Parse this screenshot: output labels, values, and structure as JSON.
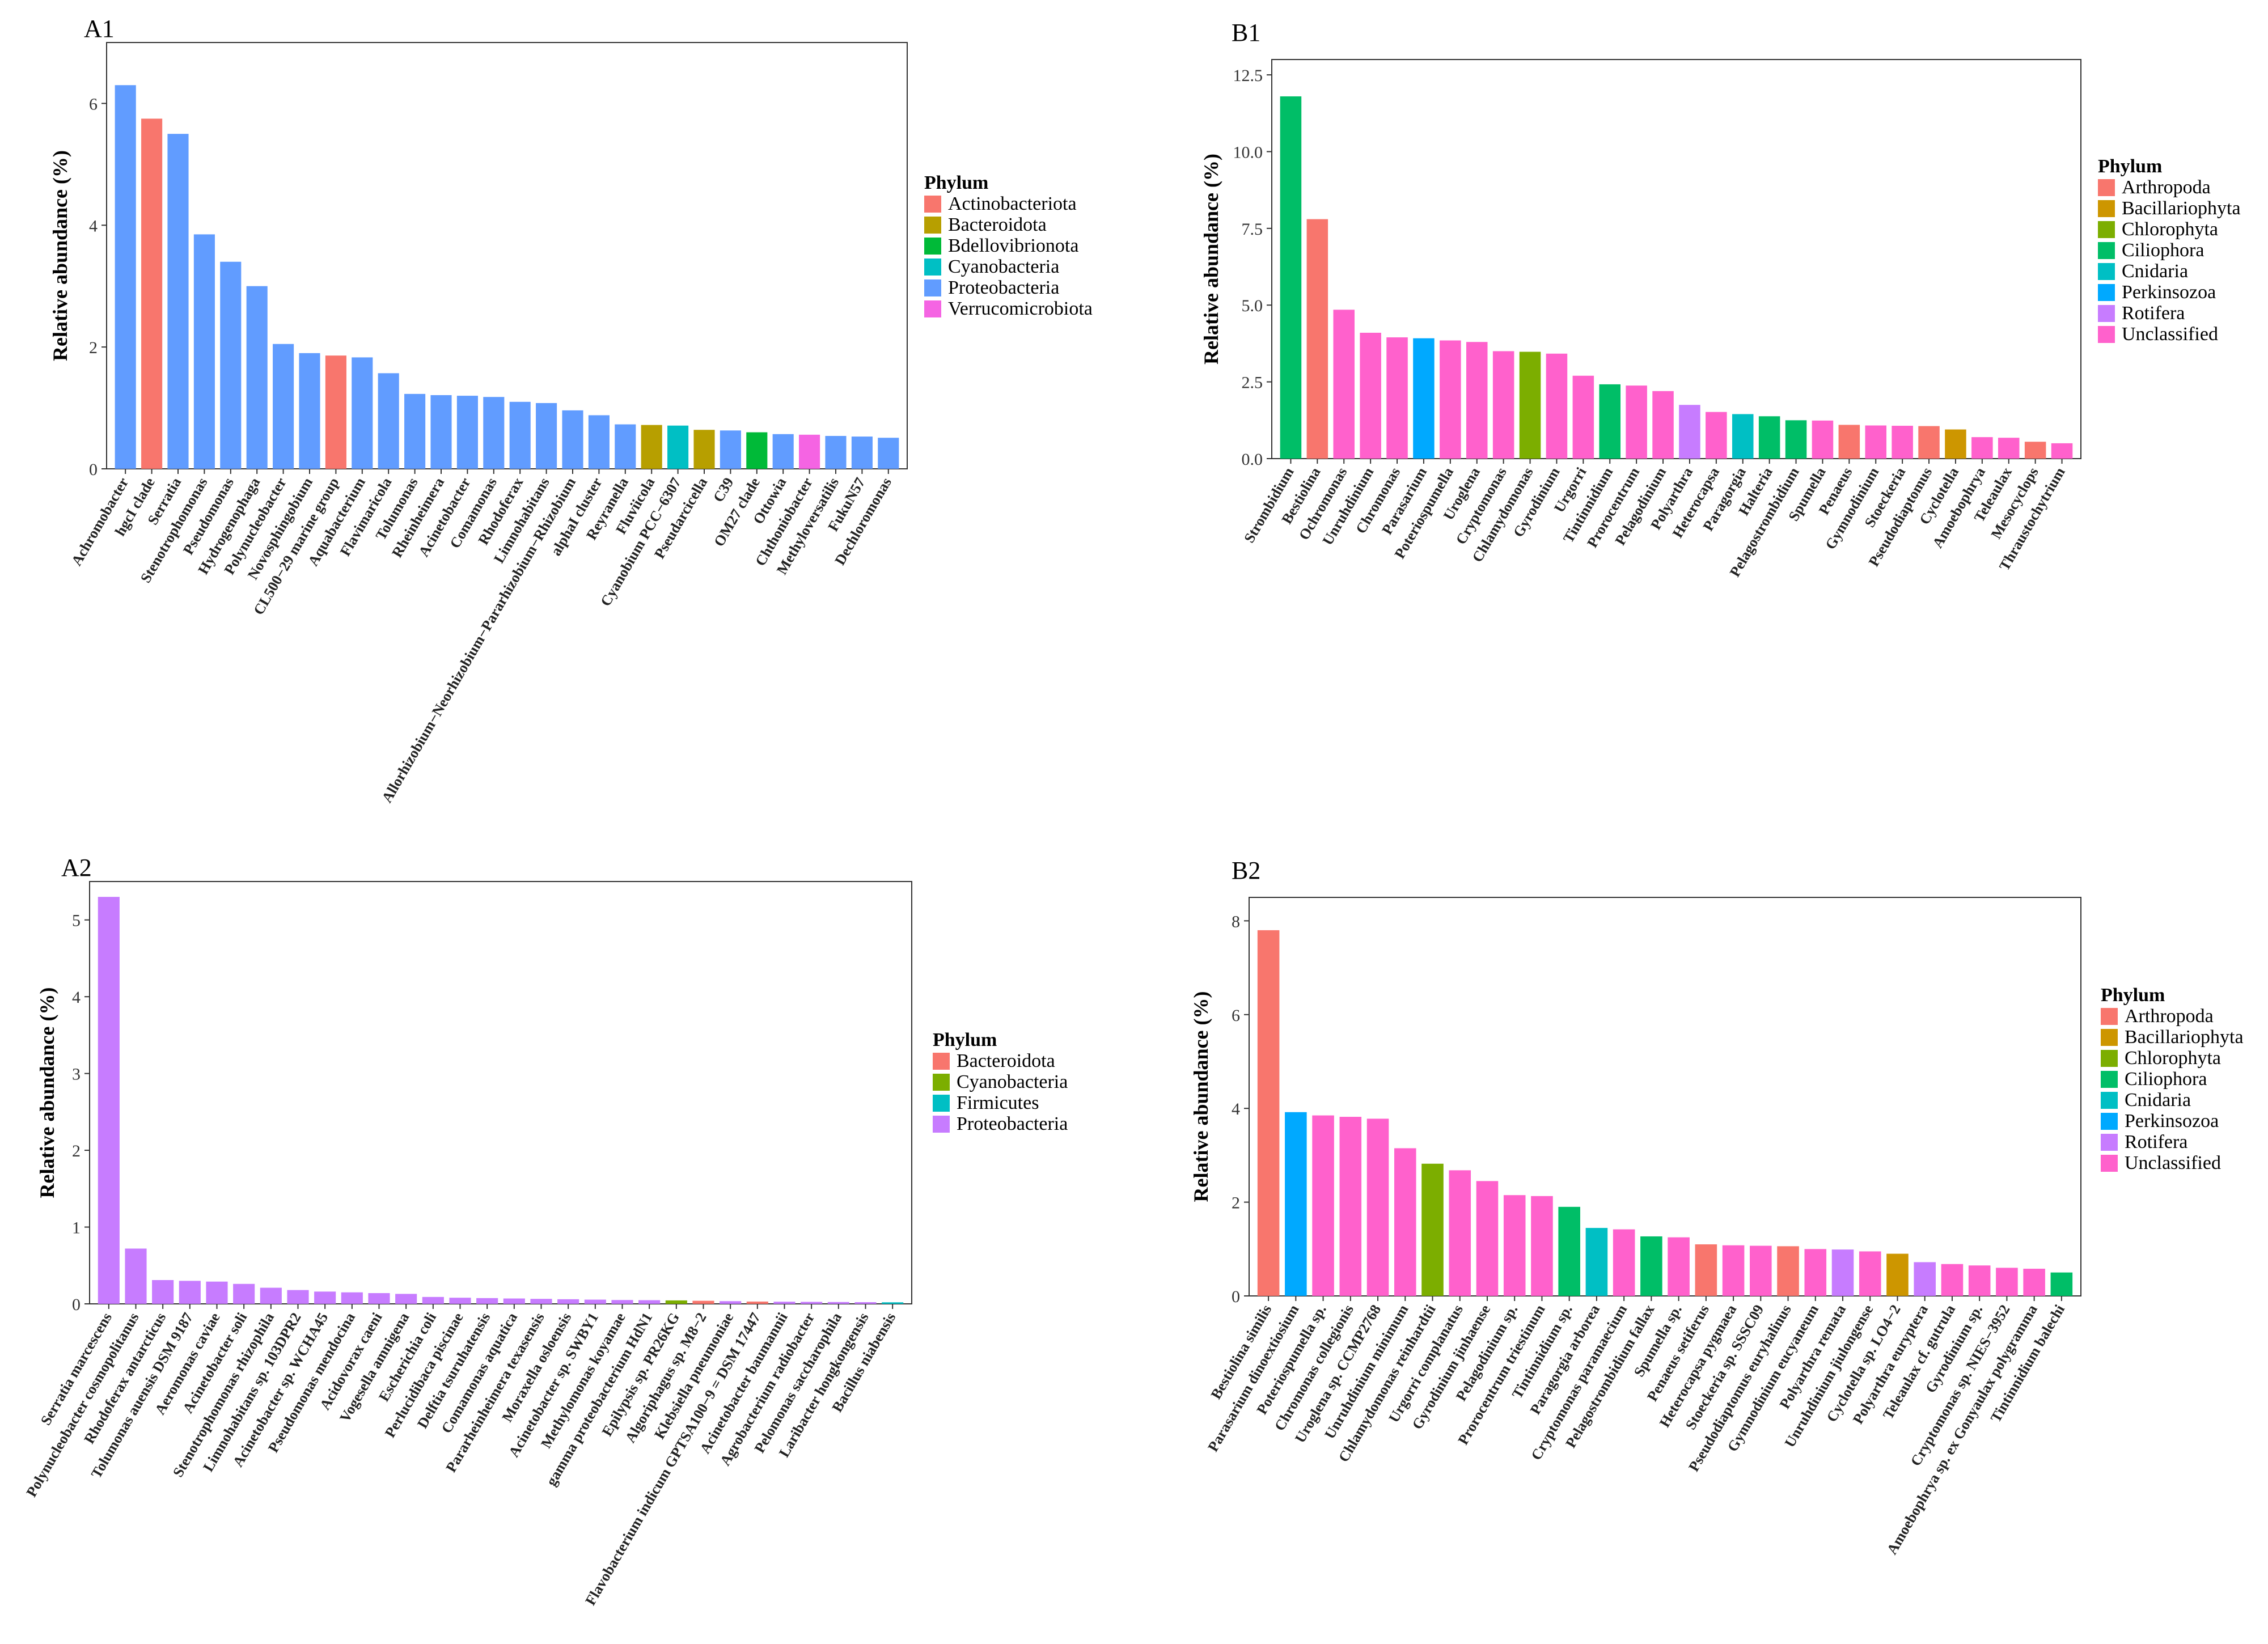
{
  "figure": {
    "y_axis_title": "Relative abundance (%)",
    "legend_title": "Phylum"
  },
  "chart_data": [
    {
      "panel": "A1",
      "type": "bar",
      "ylim": [
        0,
        7
      ],
      "yticks": [
        0,
        2,
        4,
        6
      ],
      "ytick_labels": [
        "0",
        "2",
        "4",
        "6"
      ],
      "ylabel": "Relative abundance (%)",
      "legend_title": "Phylum",
      "legend": [
        {
          "name": "Actinobacteriota",
          "color": "#F8766D"
        },
        {
          "name": "Bacteroidota",
          "color": "#B79F00"
        },
        {
          "name": "Bdellovibrionota",
          "color": "#00BA38"
        },
        {
          "name": "Cyanobacteria",
          "color": "#00BFC4"
        },
        {
          "name": "Proteobacteria",
          "color": "#619CFF"
        },
        {
          "name": "Verrucomicrobiota",
          "color": "#F564E3"
        }
      ],
      "categories": [
        "Achromobacter",
        "hgcI clade",
        "Serratia",
        "Stenotrophomonas",
        "Pseudomonas",
        "Hydrogenophaga",
        "Polynucleobacter",
        "Novosphingobium",
        "CL500−29 marine group",
        "Aquabacterium",
        "Flavimaricola",
        "Tolumonas",
        "Rheinheimera",
        "Acinetobacter",
        "Comamonas",
        "Rhodoferax",
        "Limnohabitans",
        "Allorhizobium−Neorhizobium−Pararhizobium−Rhizobium",
        "alphaI cluster",
        "Reyranella",
        "Fluviicola",
        "Cyanobium PCC−6307",
        "Pseudarcicella",
        "C39",
        "OM27 clade",
        "Ottowia",
        "Chthoniobacter",
        "Methyloversatilis",
        "FukuN57",
        "Dechloromonas"
      ],
      "values": [
        6.3,
        5.75,
        5.5,
        3.85,
        3.4,
        3.0,
        2.05,
        1.9,
        1.86,
        1.83,
        1.57,
        1.23,
        1.21,
        1.2,
        1.18,
        1.1,
        1.08,
        0.96,
        0.88,
        0.73,
        0.72,
        0.71,
        0.64,
        0.63,
        0.6,
        0.57,
        0.56,
        0.54,
        0.53,
        0.51
      ],
      "phylum": [
        "Proteobacteria",
        "Actinobacteriota",
        "Proteobacteria",
        "Proteobacteria",
        "Proteobacteria",
        "Proteobacteria",
        "Proteobacteria",
        "Proteobacteria",
        "Actinobacteriota",
        "Proteobacteria",
        "Proteobacteria",
        "Proteobacteria",
        "Proteobacteria",
        "Proteobacteria",
        "Proteobacteria",
        "Proteobacteria",
        "Proteobacteria",
        "Proteobacteria",
        "Proteobacteria",
        "Proteobacteria",
        "Bacteroidota",
        "Cyanobacteria",
        "Bacteroidota",
        "Proteobacteria",
        "Bdellovibrionota",
        "Proteobacteria",
        "Verrucomicrobiota",
        "Proteobacteria",
        "Proteobacteria",
        "Proteobacteria"
      ]
    },
    {
      "panel": "B1",
      "type": "bar",
      "ylim": [
        0,
        13
      ],
      "yticks": [
        0,
        2.5,
        5,
        7.5,
        10,
        12.5
      ],
      "ytick_labels": [
        "0.0",
        "2.5",
        "5.0",
        "7.5",
        "10.0",
        "12.5"
      ],
      "ylabel": "Relative abundance (%)",
      "legend_title": "Phylum",
      "legend": [
        {
          "name": "Arthropoda",
          "color": "#F8766D"
        },
        {
          "name": "Bacillariophyta",
          "color": "#CD9600"
        },
        {
          "name": "Chlorophyta",
          "color": "#7CAE00"
        },
        {
          "name": "Ciliophora",
          "color": "#00BE67"
        },
        {
          "name": "Cnidaria",
          "color": "#00BFC4"
        },
        {
          "name": "Perkinsozoa",
          "color": "#00A9FF"
        },
        {
          "name": "Rotifera",
          "color": "#C77CFF"
        },
        {
          "name": "Unclassified",
          "color": "#FF61CC"
        }
      ],
      "categories": [
        "Strombidium",
        "Bestiolina",
        "Ochromonas",
        "Unruhdinium",
        "Chromonas",
        "Parasarium",
        "Poteriospumella",
        "Uroglena",
        "Cryptomonas",
        "Chlamydomonas",
        "Gyrodinium",
        "Urgorri",
        "Tintinnidium",
        "Prorocentrum",
        "Pelagodinium",
        "Polyarthra",
        "Heterocapsa",
        "Paragorgia",
        "Halteria",
        "Pelagostrombidium",
        "Spumella",
        "Penaeus",
        "Gymnodinium",
        "Stoeckeria",
        "Pseudodiaptomus",
        "Cyclotella",
        "Amoebophrya",
        "Teleaulax",
        "Mesocyclops",
        "Thraustochytrium"
      ],
      "values": [
        11.8,
        7.8,
        4.85,
        4.1,
        3.95,
        3.92,
        3.85,
        3.8,
        3.5,
        3.48,
        3.42,
        2.7,
        2.42,
        2.38,
        2.2,
        1.75,
        1.52,
        1.45,
        1.38,
        1.25,
        1.24,
        1.1,
        1.08,
        1.07,
        1.06,
        0.95,
        0.7,
        0.68,
        0.55,
        0.5
      ],
      "phylum": [
        "Ciliophora",
        "Arthropoda",
        "Unclassified",
        "Unclassified",
        "Unclassified",
        "Perkinsozoa",
        "Unclassified",
        "Unclassified",
        "Unclassified",
        "Chlorophyta",
        "Unclassified",
        "Unclassified",
        "Ciliophora",
        "Unclassified",
        "Unclassified",
        "Rotifera",
        "Unclassified",
        "Cnidaria",
        "Ciliophora",
        "Ciliophora",
        "Unclassified",
        "Arthropoda",
        "Unclassified",
        "Unclassified",
        "Arthropoda",
        "Bacillariophyta",
        "Unclassified",
        "Unclassified",
        "Arthropoda",
        "Unclassified"
      ]
    },
    {
      "panel": "A2",
      "type": "bar",
      "ylim": [
        0,
        5.5
      ],
      "yticks": [
        0,
        1,
        2,
        3,
        4,
        5
      ],
      "ytick_labels": [
        "0",
        "1",
        "2",
        "3",
        "4",
        "5"
      ],
      "ylabel": "Relative abundance (%)",
      "legend_title": "Phylum",
      "legend": [
        {
          "name": "Bacteroidota",
          "color": "#F8766D"
        },
        {
          "name": "Cyanobacteria",
          "color": "#7CAE00"
        },
        {
          "name": "Firmicutes",
          "color": "#00BFC4"
        },
        {
          "name": "Proteobacteria",
          "color": "#C77CFF"
        }
      ],
      "categories": [
        "Serratia marcescens",
        "Polynucleobacter cosmopolitanus",
        "Rhodoferax antarcticus",
        "Tolumonas auensis DSM 9187",
        "Aeromonas caviae",
        "Acinetobacter soli",
        "Stenotrophomonas rhizophila",
        "Limnohabitans sp. 103DPR2",
        "Acinetobacter sp. WCHA45",
        "Pseudomonas mendocina",
        "Acidovorax caeni",
        "Vogesella amnigena",
        "Escherichia coli",
        "Perlucidibaca piscinae",
        "Delftia tsuruhatensis",
        "Comamonas aquatica",
        "Pararheinheimera texasensis",
        "Moraxella osloensis",
        "Acinetobacter sp. SWBY1",
        "Methylomonas koyamae",
        "gamma proteobacterium HdN1",
        "Epilypsis sp. PR26KG",
        "Algoriphagus sp. M8−2",
        "Klebsiella pneumoniae",
        "Flavobacterium indicum GPTSA100−9 = DSM 17447",
        "Acinetobacter baumannii",
        "Agrobacterium radiobacter",
        "Pelomonas saccharophila",
        "Laribacter hongkongensis",
        "Bacillus niabensis"
      ],
      "values": [
        5.3,
        0.72,
        0.31,
        0.3,
        0.29,
        0.26,
        0.21,
        0.18,
        0.16,
        0.15,
        0.14,
        0.13,
        0.09,
        0.08,
        0.075,
        0.07,
        0.065,
        0.06,
        0.055,
        0.05,
        0.048,
        0.045,
        0.04,
        0.035,
        0.03,
        0.028,
        0.026,
        0.024,
        0.022,
        0.02
      ],
      "phylum": [
        "Proteobacteria",
        "Proteobacteria",
        "Proteobacteria",
        "Proteobacteria",
        "Proteobacteria",
        "Proteobacteria",
        "Proteobacteria",
        "Proteobacteria",
        "Proteobacteria",
        "Proteobacteria",
        "Proteobacteria",
        "Proteobacteria",
        "Proteobacteria",
        "Proteobacteria",
        "Proteobacteria",
        "Proteobacteria",
        "Proteobacteria",
        "Proteobacteria",
        "Proteobacteria",
        "Proteobacteria",
        "Proteobacteria",
        "Cyanobacteria",
        "Bacteroidota",
        "Proteobacteria",
        "Bacteroidota",
        "Proteobacteria",
        "Proteobacteria",
        "Proteobacteria",
        "Proteobacteria",
        "Firmicutes"
      ]
    },
    {
      "panel": "B2",
      "type": "bar",
      "ylim": [
        0,
        8.5
      ],
      "yticks": [
        0,
        2,
        4,
        6,
        8
      ],
      "ytick_labels": [
        "0",
        "2",
        "4",
        "6",
        "8"
      ],
      "ylabel": "Relative abundance (%)",
      "legend_title": "Phylum",
      "legend": [
        {
          "name": "Arthropoda",
          "color": "#F8766D"
        },
        {
          "name": "Bacillariophyta",
          "color": "#CD9600"
        },
        {
          "name": "Chlorophyta",
          "color": "#7CAE00"
        },
        {
          "name": "Ciliophora",
          "color": "#00BE67"
        },
        {
          "name": "Cnidaria",
          "color": "#00BFC4"
        },
        {
          "name": "Perkinsozoa",
          "color": "#00A9FF"
        },
        {
          "name": "Rotifera",
          "color": "#C77CFF"
        },
        {
          "name": "Unclassified",
          "color": "#FF61CC"
        }
      ],
      "categories": [
        "Bestiolina similis",
        "Parasarium dinoextiosium",
        "Poteriospumella sp.",
        "Chromonas collegionis",
        "Uroglena sp. CCMP2768",
        "Unruhdinium minimum",
        "Chlamydomonas reinhardtii",
        "Urgorri complanatus",
        "Gyrodinium jinhaense",
        "Pelagodinium sp.",
        "Prorocentrum triestinum",
        "Tintinnidium sp.",
        "Paragorgia arborea",
        "Cryptomonas paramaecium",
        "Pelagostrombidium fallax",
        "Spumella sp.",
        "Penaeus setiferus",
        "Heterocapsa pygmaea",
        "Stoeckeria sp. SSSC09",
        "Pseudodiaptomus euryhalinus",
        "Gymnodinium eucyaneum",
        "Polyarthra remata",
        "Unruhdinium jiulongense",
        "Cyclotella sp. LO4−2",
        "Polyarthra euryptera",
        "Teleaulax cf. gutrula",
        "Gyrodinium sp.",
        "Cryptomonas sp. NIES−3952",
        "Amoebophrya sp. ex Gonyaulax polygramma",
        "Tintinnidium balechi"
      ],
      "values": [
        7.8,
        3.92,
        3.85,
        3.82,
        3.78,
        3.15,
        2.82,
        2.68,
        2.45,
        2.15,
        2.13,
        1.9,
        1.45,
        1.42,
        1.27,
        1.25,
        1.1,
        1.08,
        1.07,
        1.06,
        1.0,
        0.99,
        0.95,
        0.9,
        0.72,
        0.68,
        0.65,
        0.6,
        0.58,
        0.5
      ],
      "phylum": [
        "Arthropoda",
        "Perkinsozoa",
        "Unclassified",
        "Unclassified",
        "Unclassified",
        "Unclassified",
        "Chlorophyta",
        "Unclassified",
        "Unclassified",
        "Unclassified",
        "Unclassified",
        "Ciliophora",
        "Cnidaria",
        "Unclassified",
        "Ciliophora",
        "Unclassified",
        "Arthropoda",
        "Unclassified",
        "Unclassified",
        "Arthropoda",
        "Unclassified",
        "Rotifera",
        "Unclassified",
        "Bacillariophyta",
        "Rotifera",
        "Unclassified",
        "Unclassified",
        "Unclassified",
        "Unclassified",
        "Ciliophora"
      ]
    }
  ]
}
